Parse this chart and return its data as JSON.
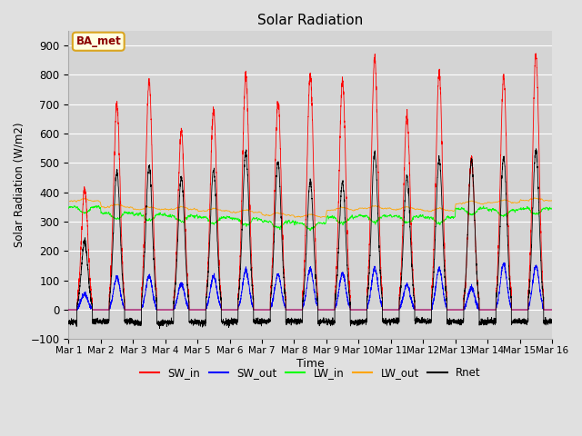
{
  "title": "Solar Radiation",
  "xlabel": "Time",
  "ylabel": "Solar Radiation (W/m2)",
  "ylim": [
    -100,
    950
  ],
  "yticks": [
    -100,
    0,
    100,
    200,
    300,
    400,
    500,
    600,
    700,
    800,
    900
  ],
  "annotation": "BA_met",
  "legend_entries": [
    "SW_in",
    "SW_out",
    "LW_in",
    "LW_out",
    "Rnet"
  ],
  "legend_colors": [
    "red",
    "blue",
    "lime",
    "orange",
    "black"
  ],
  "fig_facecolor": "#e0e0e0",
  "ax_facecolor": "#d4d4d4",
  "n_days": 15,
  "points_per_day": 288,
  "SW_in_peaks": [
    410,
    700,
    780,
    610,
    680,
    800,
    710,
    800,
    780,
    860,
    660,
    810,
    510,
    790,
    870
  ],
  "SW_out_peaks": [
    55,
    110,
    115,
    90,
    115,
    135,
    120,
    140,
    125,
    145,
    85,
    140,
    75,
    155,
    150
  ],
  "LW_in_base": [
    350,
    330,
    325,
    320,
    315,
    310,
    300,
    295,
    315,
    320,
    318,
    315,
    345,
    340,
    345
  ],
  "LW_out_base": [
    370,
    350,
    342,
    342,
    337,
    332,
    322,
    317,
    340,
    345,
    342,
    337,
    362,
    365,
    372
  ],
  "Rnet_day_peaks": [
    230,
    470,
    490,
    450,
    475,
    540,
    505,
    435,
    435,
    535,
    455,
    515,
    510,
    520,
    545
  ],
  "Rnet_night": [
    -40,
    -40,
    -45,
    -42,
    -43,
    -40,
    -38,
    -40,
    -42,
    -40,
    -38,
    -40,
    -42,
    -40,
    -40
  ]
}
